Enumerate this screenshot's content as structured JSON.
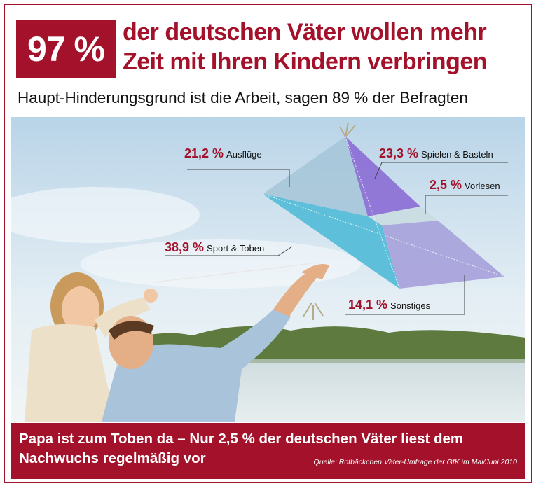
{
  "header": {
    "badge": "97 %",
    "title_line1": "der deutschen Väter wollen mehr",
    "title_line2": "Zeit mit Ihren Kindern verbringen",
    "subtitle": "Haupt-Hinderungsgrund ist die Arbeit, sagen 89 % der Befragten"
  },
  "chart_data": {
    "type": "pie",
    "title": "Zeit mit Ihren Kindern verbringen",
    "unit": "%",
    "categories": [
      "Ausflüge",
      "Spielen & Basteln",
      "Vorlesen",
      "Sport & Toben",
      "Sonstiges"
    ],
    "values": [
      21.2,
      23.3,
      2.5,
      38.9,
      14.1
    ],
    "labels": [
      "21,2 %",
      "23,3 %",
      "2,5 %",
      "38,9 %",
      "14,1 %"
    ],
    "colors": [
      "#a9c7da",
      "#8d72d6",
      "#c8dce0",
      "#56bdd8",
      "#a9a4dc"
    ]
  },
  "footer": {
    "line1": "Papa ist zum Toben da – Nur 2,5 % der deutschen Väter liest dem",
    "line2": "Nachwuchs regelmäßig vor",
    "source": "Quelle: Rotbäckchen Väter-Umfrage der GfK im Mai/Juni 2010"
  },
  "colors": {
    "accent": "#a3122a",
    "sky": "#cfe0ec",
    "water": "#d6e2e5"
  }
}
